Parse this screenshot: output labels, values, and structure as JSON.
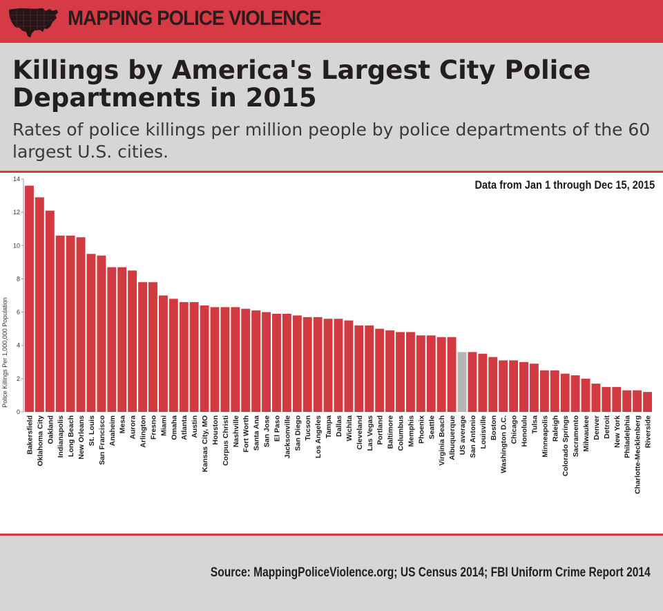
{
  "banner": {
    "brand": "MAPPING POLICE VIOLENCE",
    "logo_icon": "us-map-icon"
  },
  "header": {
    "title": "Killings by America's Largest City Police Departments in 2015",
    "subtitle": "Rates of police killings per million people by police departments of the 60 largest U.S. cities."
  },
  "note": "Data from Jan 1 through Dec 15, 2015",
  "source": "Source: MappingPoliceViolence.org; US Census 2014; FBI Uniform Crime Report 2014",
  "colors": {
    "bar": "#d13a41",
    "average": "#b5b5b5",
    "accent": "#d53a45"
  },
  "chart_data": {
    "type": "bar",
    "ylabel": "Police Killings Per 1,000,000 Population",
    "ylim": [
      0,
      14
    ],
    "yticks": [
      0,
      2,
      4,
      6,
      8,
      10,
      12,
      14
    ],
    "grid": false,
    "highlight": "US average",
    "categories": [
      "Bakersfield",
      "Oklahoma City",
      "Oakland",
      "Indianapolis",
      "Long Beach",
      "New Orleans",
      "St. Louis",
      "San Francisco",
      "Anaheim",
      "Mesa",
      "Aurora",
      "Arlington",
      "Fresno",
      "Miami",
      "Omaha",
      "Atlanta",
      "Austin",
      "Kansas City, MO",
      "Houston",
      "Corpus Christi",
      "Nashville",
      "Fort Worth",
      "Santa Ana",
      "San Jose",
      "El Paso",
      "Jacksonville",
      "San Diego",
      "Tucson",
      "Los Angeles",
      "Tampa",
      "Dallas",
      "Wichita",
      "Cleveland",
      "Las Vegas",
      "Portland",
      "Baltimore",
      "Columbus",
      "Memphis",
      "Phoenix",
      "Seattle",
      "Virginia Beach",
      "Albuquerque",
      "US average",
      "San Antonio",
      "Louisville",
      "Boston",
      "Washington D.C.",
      "Chicago",
      "Honolulu",
      "Tulsa",
      "Minneapolis",
      "Raleigh",
      "Colorado Springs",
      "Sacramento",
      "Milwaukee",
      "Denver",
      "Detroit",
      "New York",
      "Philadelphia",
      "Charlotte-Mecklenberg",
      "Riverside"
    ],
    "values": [
      13.6,
      12.9,
      12.1,
      10.6,
      10.6,
      10.5,
      9.5,
      9.4,
      8.7,
      8.7,
      8.5,
      7.8,
      7.8,
      7.0,
      6.8,
      6.6,
      6.6,
      6.4,
      6.3,
      6.3,
      6.3,
      6.2,
      6.1,
      6.0,
      5.9,
      5.9,
      5.8,
      5.7,
      5.7,
      5.6,
      5.6,
      5.5,
      5.2,
      5.2,
      5.0,
      4.9,
      4.8,
      4.8,
      4.6,
      4.6,
      4.5,
      4.5,
      3.6,
      3.6,
      3.5,
      3.3,
      3.1,
      3.1,
      3.0,
      2.9,
      2.5,
      2.5,
      2.3,
      2.2,
      2.0,
      1.7,
      1.5,
      1.5,
      1.3,
      1.3,
      1.2
    ]
  }
}
